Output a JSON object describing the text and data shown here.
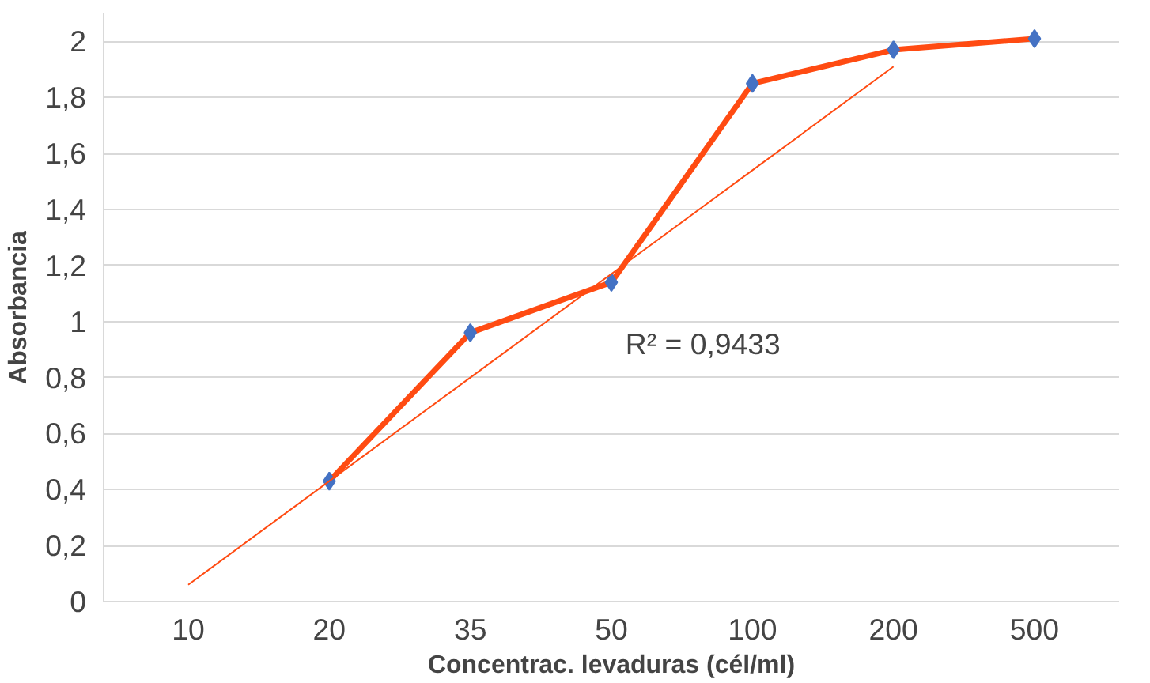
{
  "chart_data": {
    "type": "line",
    "xlabel": "Concentrac. levaduras (cél/ml)",
    "ylabel": "Absorbancia",
    "categories": [
      "10",
      "20",
      "35",
      "50",
      "100",
      "200",
      "500"
    ],
    "ylim": [
      0,
      2.1
    ],
    "yticks": [
      0,
      {
        "value": 0.2,
        "label": "0,2"
      },
      {
        "value": 0.4,
        "label": "0,4"
      },
      {
        "value": 0.6,
        "label": "0,6"
      },
      {
        "value": 0.8,
        "label": "0,8"
      },
      1,
      {
        "value": 1.2,
        "label": "1,2"
      },
      {
        "value": 1.4,
        "label": "1,4"
      },
      {
        "value": 1.6,
        "label": "1,6"
      },
      {
        "value": 1.8,
        "label": "1,8"
      },
      2
    ],
    "grid": "y",
    "series": [
      {
        "color": "#ff4b12",
        "values": [
          null,
          0.43,
          0.96,
          1.14,
          1.85,
          1.97,
          2.01
        ],
        "marker": "none",
        "line_style": "solid"
      },
      {
        "type": "scatter",
        "color": "#4472c4",
        "values": [
          null,
          0.43,
          0.96,
          1.14,
          1.85,
          1.97,
          2.01
        ],
        "marker": "diamond"
      },
      {
        "color": "#ff4b12",
        "values": [
          0.06,
          0.43,
          0.8,
          1.17,
          1.54,
          1.91,
          null
        ],
        "marker": "none",
        "line_style": "solid"
      }
    ],
    "annotations": [
      "R² = 0,9433"
    ]
  }
}
